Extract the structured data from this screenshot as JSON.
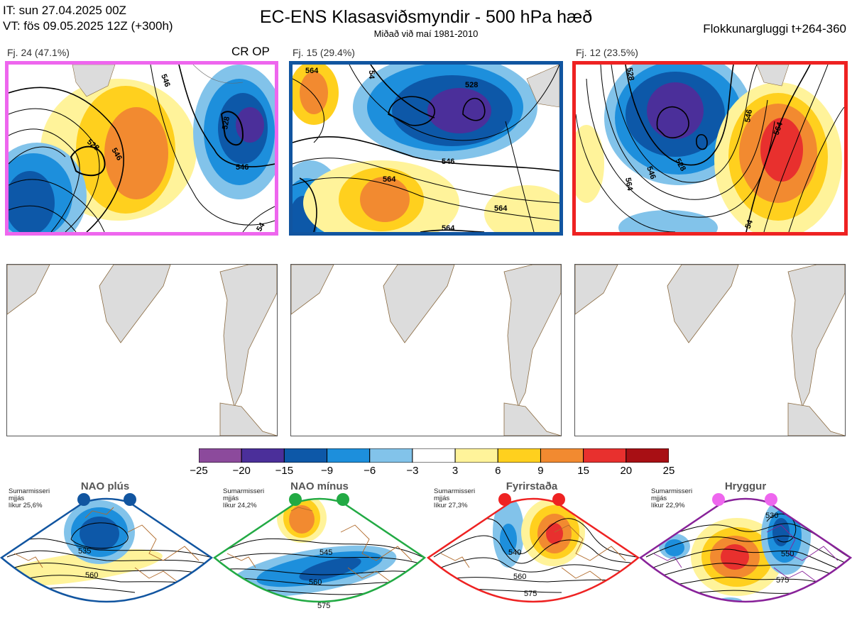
{
  "header": {
    "it": "IT: sun 27.04.2025 00Z",
    "vt": "VT: fös 09.05.2025 12Z  (+300h)",
    "title": "EC-ENS Klasasviðsmyndir - 500 hPa hæð",
    "subtitle": "Miðað við maí 1981-2010",
    "window": "Flokkunargluggi t+264-360"
  },
  "panels": [
    {
      "label": "Fj. 24 (47.1%)",
      "tag": "CR OP",
      "frame_color": "#ee66ee"
    },
    {
      "label": "Fj. 15 (29.4%)",
      "tag": "",
      "frame_color": "#1155a0"
    },
    {
      "label": "Fj. 12 (23.5%)",
      "tag": "",
      "frame_color": "#ee2222"
    }
  ],
  "contour_labels": {
    "panel1": [
      "546",
      "528",
      "546",
      "528",
      "546",
      "54"
    ],
    "panel2": [
      "564",
      "54",
      "528",
      "546",
      "564",
      "564",
      "564"
    ],
    "panel3": [
      "528",
      "546",
      "528",
      "546",
      "564",
      "564",
      "54"
    ]
  },
  "chart_data": {
    "type": "heatmap",
    "title": "EC-ENS Klasasviðsmyndir - 500 hPa hæð",
    "subtitle": "Miðað við maí 1981-2010",
    "colorbar": {
      "ticks": [
        "−25",
        "−20",
        "−15",
        "−9",
        "−6",
        "−3",
        "3",
        "6",
        "9",
        "15",
        "20",
        "25"
      ],
      "colors": [
        "#8c4a9c",
        "#4b2f9a",
        "#0d58a8",
        "#1d8fdc",
        "#82c3ea",
        "#ffffff",
        "#fff39a",
        "#ffd01e",
        "#f28a30",
        "#e8302e",
        "#a80f14"
      ]
    },
    "clusters": [
      {
        "label": "Fj. 24 (47.1%)",
        "members": 24,
        "percent": 47.1
      },
      {
        "label": "Fj. 15 (29.4%)",
        "members": 15,
        "percent": 29.4
      },
      {
        "label": "Fj. 12 (23.5%)",
        "members": 12,
        "percent": 23.5
      }
    ]
  },
  "regimes": [
    {
      "name": "NAO plús",
      "note": [
        "Sumarmisseri",
        "mjjás",
        "líkur 25,6%"
      ],
      "color": "#1155a0",
      "labels": [
        "535",
        "560"
      ]
    },
    {
      "name": "NAO mínus",
      "note": [
        "Sumarmisseri",
        "mjjás",
        "líkur 24,2%"
      ],
      "color": "#22aa44",
      "labels": [
        "545",
        "560",
        "575"
      ]
    },
    {
      "name": "Fyrirstaða",
      "note": [
        "Sumarmisseri",
        "mjjás",
        "líkur 27,3%"
      ],
      "color": "#ee2222",
      "labels": [
        "540",
        "560",
        "575"
      ]
    },
    {
      "name": "Hryggur",
      "note": [
        "Sumarmisseri",
        "mjjás",
        "líkur 22,9%"
      ],
      "color": "#ee66ee",
      "frame": "#882299",
      "labels": [
        "530",
        "550",
        "575"
      ]
    }
  ]
}
